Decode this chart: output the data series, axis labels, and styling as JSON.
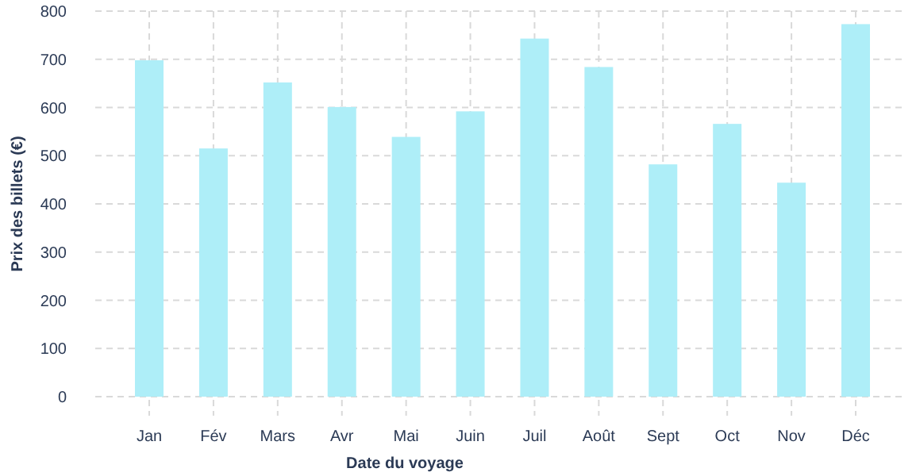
{
  "chart_data": {
    "type": "bar",
    "xlabel": "Date du voyage",
    "ylabel": "Prix des billets (€)",
    "categories": [
      "Jan",
      "Fév",
      "Mars",
      "Avr",
      "Mai",
      "Juin",
      "Juil",
      "Août",
      "Sept",
      "Oct",
      "Nov",
      "Déc"
    ],
    "values": [
      698,
      515,
      652,
      601,
      539,
      592,
      743,
      684,
      482,
      566,
      444,
      773
    ],
    "color": "#aeeef8",
    "ylim": [
      0,
      800
    ],
    "yticks": [
      0,
      100,
      200,
      300,
      400,
      500,
      600,
      700,
      800
    ],
    "grid": true
  }
}
